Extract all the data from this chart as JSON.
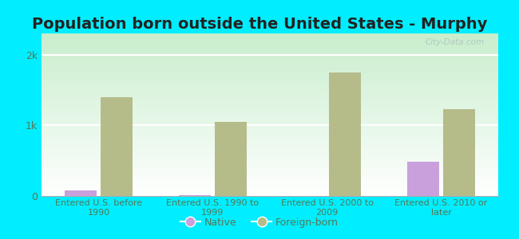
{
  "title": "Population born outside the United States - Murphy",
  "categories": [
    "Entered U.S. before\n1990",
    "Entered U.S. 1990 to\n1999",
    "Entered U.S. 2000 to\n2009",
    "Entered U.S. 2010 or\nlater"
  ],
  "native_values": [
    80,
    8,
    4,
    480
  ],
  "foreign_values": [
    1400,
    1050,
    1750,
    1230
  ],
  "native_color": "#c9a0dc",
  "foreign_color": "#b5bc8a",
  "background_outer": "#00eeff",
  "background_inner": "#e6f5e0",
  "ylim": [
    0,
    2300
  ],
  "yticks": [
    0,
    1000,
    2000
  ],
  "ytick_labels": [
    "0",
    "1k",
    "2k"
  ],
  "title_fontsize": 14,
  "bar_width": 0.28,
  "legend_labels": [
    "Native",
    "Foreign-born"
  ],
  "watermark": "City-Data.com",
  "axis_text_color": "#557755",
  "title_color": "#222222"
}
